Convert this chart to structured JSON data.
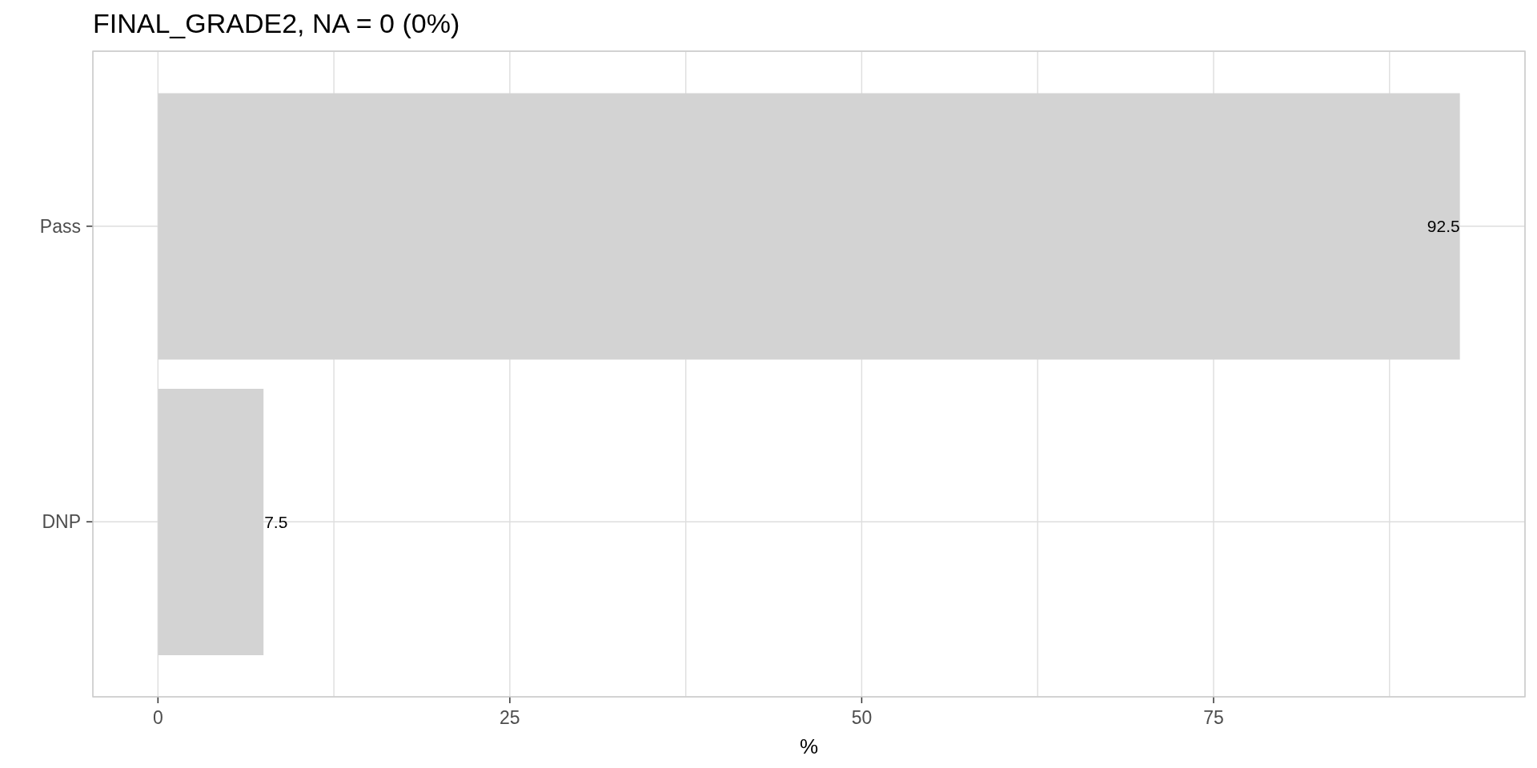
{
  "chart_data": {
    "type": "bar",
    "orientation": "horizontal",
    "title": "FINAL_GRADE2, NA = 0 (0%)",
    "xlabel": "%",
    "categories": [
      "Pass",
      "DNP"
    ],
    "values": [
      92.5,
      7.5
    ],
    "color": "#d3d3d3",
    "xlim": [
      -4.625,
      97.125
    ],
    "xticks": [
      0,
      {
        "value": 12.5,
        "label": null
      },
      25,
      {
        "value": 37.5,
        "label": null
      },
      50,
      {
        "value": 62.5,
        "label": null
      },
      75,
      {
        "value": 87.5,
        "label": null
      }
    ],
    "data_labels": true,
    "grid": true
  }
}
